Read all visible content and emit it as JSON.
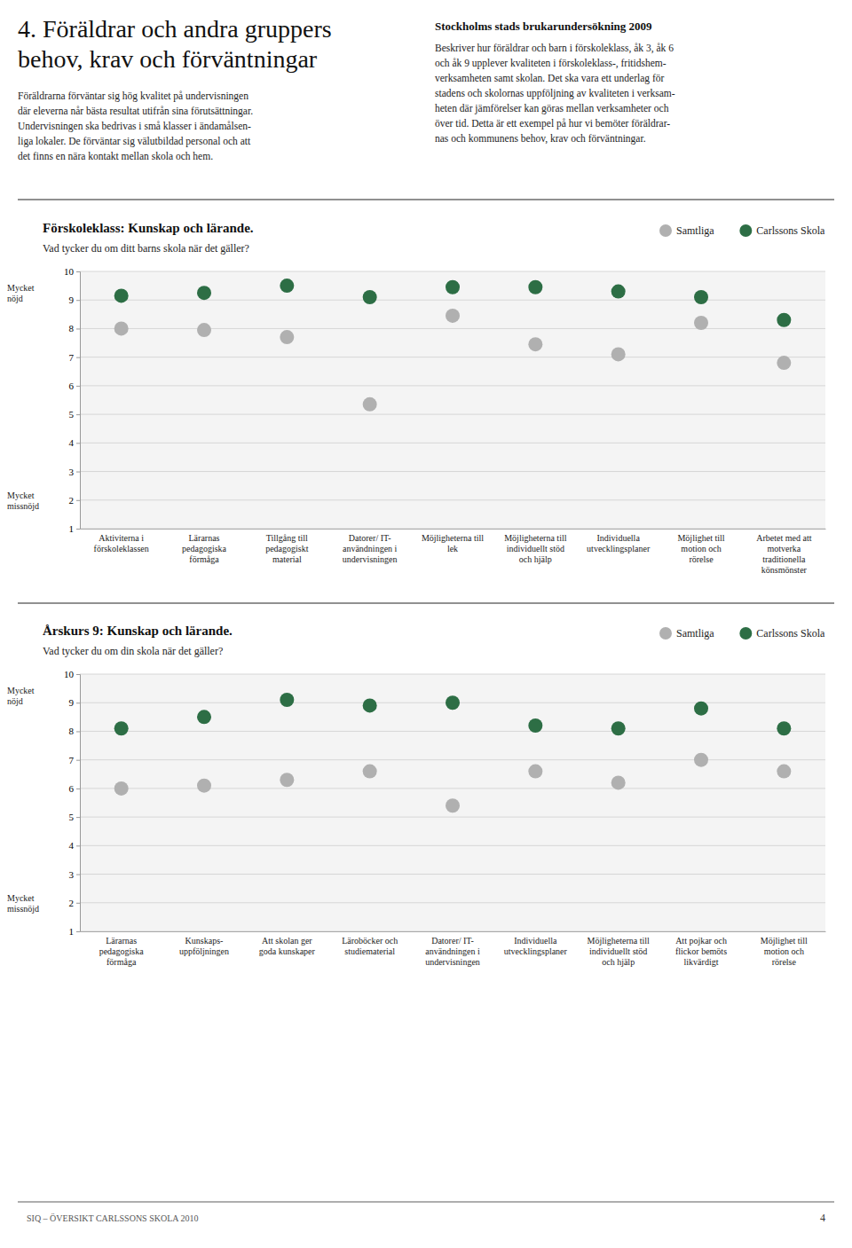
{
  "page_title": "4. Föräldrar och andra gruppers\nbehov, krav och förväntningar",
  "page_text": "Föräldrarna förväntar sig hög kvalitet på undervisningen\ndär eleverna når bästa resultat utifrån sina förutsättningar.\nUndervisningen ska bedrivas i små klasser i ändamålsen-\nliga lokaler. De förväntar sig välutbildad personal och att\ndet finns en nära kontakt mellan skola och hem.",
  "sidebar_title": "Stockholms stads brukarundersökning 2009",
  "sidebar_text": "Beskriver hur föräldrar och barn i förskoleklass, åk 3, åk 6\noch åk 9 upplever kvaliteten i förskoleklass-, fritidshem-\nverksamheten samt skolan. Det ska vara ett underlag för\nstadens och skolornas uppföljning av kvaliteten i verksam-\nheten där jämförelser kan göras mellan verksamheter och\növer tid. Detta är ett exempel på hur vi bemöter föräldrar-\nnas och kommunens behov, krav och förväntningar.",
  "footer_text": "SIQ – ÖVERSIKT CARLSSONS SKOLA 2010",
  "footer_page": "4",
  "chart_data": [
    {
      "type": "scatter",
      "title": "Förskoleklass: Kunskap och lärande.",
      "subtitle": "Vad tycker du om ditt barns skola när det gäller?",
      "categories": [
        "Aktiviterna i\nförskoleklassen",
        "Lärarnas\npedagogiska\nförmåga",
        "Tillgång till\npedagogiskt\nmaterial",
        "Datorer/ IT-\nanvändningen i\nundervisningen",
        "Möjligheterna till\nlek",
        "Möjligheterna till\nindividuellt stöd\noch hjälp",
        "Individuella\nutvecklingsplaner",
        "Möjlighet till\nmotion och\nrörelse",
        "Arbetet med att\nmotverka\ntraditionella\nkönsmönster"
      ],
      "series": [
        {
          "name": "Samtliga",
          "color": "#b0b0b0",
          "values": [
            8.0,
            7.95,
            7.7,
            5.35,
            8.45,
            7.45,
            7.1,
            8.2,
            6.8
          ]
        },
        {
          "name": "Carlssons Skola",
          "color": "#2d6e45",
          "values": [
            9.15,
            9.25,
            9.5,
            9.1,
            9.45,
            9.45,
            9.3,
            9.1,
            8.3
          ]
        }
      ],
      "ylim": [
        1,
        10
      ],
      "yticks": [
        1,
        2,
        3,
        4,
        5,
        6,
        7,
        8,
        9,
        10
      ],
      "grid": true,
      "legend": "top-right",
      "annotations": [
        "Mycket\nnöjd",
        "Mycket\nmissnöjd"
      ]
    },
    {
      "type": "scatter",
      "title": "Årskurs 9: Kunskap och lärande.",
      "subtitle": "Vad tycker du om din skola när det gäller?",
      "categories": [
        "Lärarnas\npedagogiska\nförmåga",
        "Kunskaps-\nuppföljningen",
        "Att skolan ger\ngoda kunskaper",
        "Läroböcker och\nstudiematerial",
        "Datorer/ IT-\nanvändningen i\nundervisningen",
        "Individuella\nutvecklingsplaner",
        "Möjligheterna till\nindividuellt stöd\noch hjälp",
        "Att pojkar och\nflickor bemöts\nlikvärdigt",
        "Möjlighet till\nmotion och\nrörelse"
      ],
      "series": [
        {
          "name": "Samtliga",
          "color": "#b0b0b0",
          "values": [
            6.0,
            6.1,
            6.3,
            6.6,
            5.4,
            6.6,
            6.2,
            7.0,
            6.6
          ]
        },
        {
          "name": "Carlssons Skola",
          "color": "#2d6e45",
          "values": [
            8.1,
            8.5,
            9.1,
            8.9,
            9.0,
            8.2,
            8.1,
            8.8,
            8.1
          ]
        }
      ],
      "ylim": [
        1,
        10
      ],
      "yticks": [
        1,
        2,
        3,
        4,
        5,
        6,
        7,
        8,
        9,
        10
      ],
      "grid": true,
      "legend": "top-right",
      "annotations": [
        "Mycket\nnöjd",
        "Mycket\nmissnöjd"
      ]
    }
  ]
}
